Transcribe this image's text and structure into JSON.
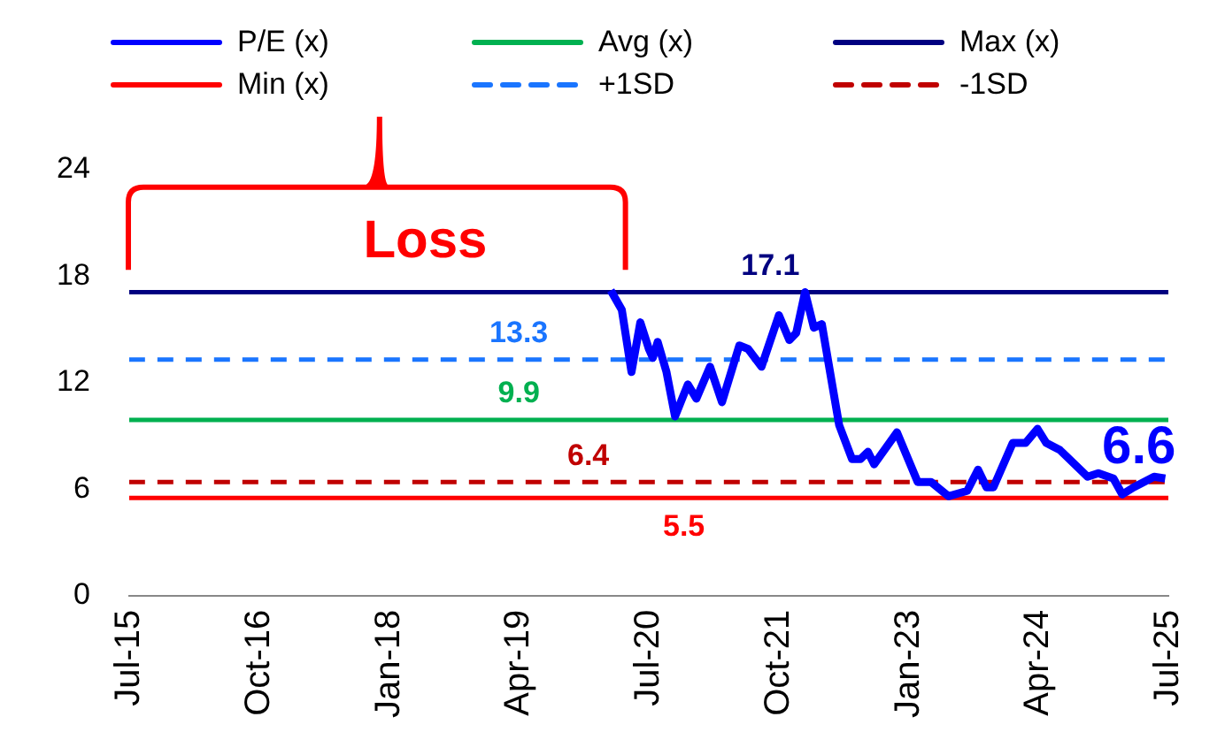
{
  "chart_data": {
    "type": "line",
    "xlim": [
      "2015-07-01",
      "2025-07-01"
    ],
    "xticks": [
      {
        "value": "2015-07-01",
        "label": "Jul-15"
      },
      {
        "value": "2016-10-01",
        "label": "Oct-16"
      },
      {
        "value": "2018-01-01",
        "label": "Jan-18"
      },
      {
        "value": "2019-04-01",
        "label": "Apr-19"
      },
      {
        "value": "2020-07-01",
        "label": "Jul-20"
      },
      {
        "value": "2021-10-01",
        "label": "Oct-21"
      },
      {
        "value": "2023-01-01",
        "label": "Jan-23"
      },
      {
        "value": "2024-04-01",
        "label": "Apr-24"
      },
      {
        "value": "2025-07-01",
        "label": "Jul-25"
      }
    ],
    "ylim": [
      0,
      24
    ],
    "yticks": [
      0,
      6,
      12,
      18,
      24
    ],
    "grid": false,
    "legend": "top",
    "marker": "none",
    "series": [
      {
        "name": "P/E (x)",
        "color": "#0000ff",
        "x": [
          "2020-02-18",
          "2020-03-28",
          "2020-05-01",
          "2020-06-01",
          "2020-07-01",
          "2020-07-15",
          "2020-08-01",
          "2020-09-01",
          "2020-10-01",
          "2020-11-15",
          "2020-12-15",
          "2021-02-01",
          "2021-03-15",
          "2021-05-15",
          "2021-06-15",
          "2021-08-01",
          "2021-10-01",
          "2021-11-07",
          "2021-12-01",
          "2022-01-01",
          "2022-02-01",
          "2022-03-01",
          "2022-05-01",
          "2022-06-15",
          "2022-07-15",
          "2022-08-10",
          "2022-09-01",
          "2022-11-20",
          "2023-02-01",
          "2023-03-20",
          "2023-05-20",
          "2023-07-25",
          "2023-09-01",
          "2023-10-01",
          "2023-10-25",
          "2024-01-01",
          "2024-02-15",
          "2024-03-28",
          "2024-04-28",
          "2024-06-15",
          "2024-09-20",
          "2024-10-28",
          "2024-12-20",
          "2025-01-20",
          "2025-03-01",
          "2025-05-12",
          "2025-06-20"
        ],
        "values": [
          17.2,
          16.1,
          12.6,
          15.4,
          13.9,
          13.4,
          14.3,
          12.6,
          10.1,
          11.9,
          11.1,
          12.9,
          10.9,
          14.1,
          13.9,
          12.9,
          15.8,
          14.4,
          14.8,
          17.1,
          15.1,
          15.3,
          9.6,
          7.7,
          7.7,
          8.1,
          7.4,
          9.2,
          6.4,
          6.4,
          5.6,
          5.9,
          7.1,
          6.1,
          6.1,
          8.6,
          8.6,
          9.4,
          8.6,
          8.2,
          6.7,
          6.9,
          6.6,
          5.7,
          6.1,
          6.7,
          6.6
        ]
      },
      {
        "name": "Avg (x)",
        "color": "#00b050",
        "x": [
          "2015-07-01",
          "2025-07-01"
        ],
        "values": [
          9.9,
          9.9
        ]
      },
      {
        "name": "Max (x)",
        "color": "#000080",
        "x": [
          "2015-07-01",
          "2025-07-01"
        ],
        "values": [
          17.1,
          17.1
        ]
      },
      {
        "name": "Min (x)",
        "color": "#ff0000",
        "x": [
          "2015-07-01",
          "2025-07-01"
        ],
        "values": [
          5.5,
          5.5
        ]
      },
      {
        "name": "+1SD",
        "color": "#1a75ff",
        "line_style": "dashed",
        "x": [
          "2015-07-01",
          "2025-07-01"
        ],
        "values": [
          13.3,
          13.3
        ]
      },
      {
        "name": "-1SD",
        "color": "#c00000",
        "line_style": "dashed",
        "x": [
          "2015-07-01",
          "2025-07-01"
        ],
        "values": [
          6.4,
          6.4
        ]
      }
    ],
    "annotations": [
      "Loss",
      {
        "text": "17.1",
        "x": "2021-09-01",
        "y": 17.1
      },
      {
        "text": "13.3",
        "x": "2019-04-01",
        "y": 13.3
      },
      {
        "text": "9.9",
        "x": "2019-04-01",
        "y": 9.9
      },
      {
        "text": "6.4",
        "x": "2019-12-01",
        "y": 6.4
      },
      {
        "text": "5.5",
        "x": "2020-11-01",
        "y": 5.5
      },
      {
        "text": "6.6",
        "x": "2025-06-20",
        "y": 6.6
      }
    ]
  }
}
